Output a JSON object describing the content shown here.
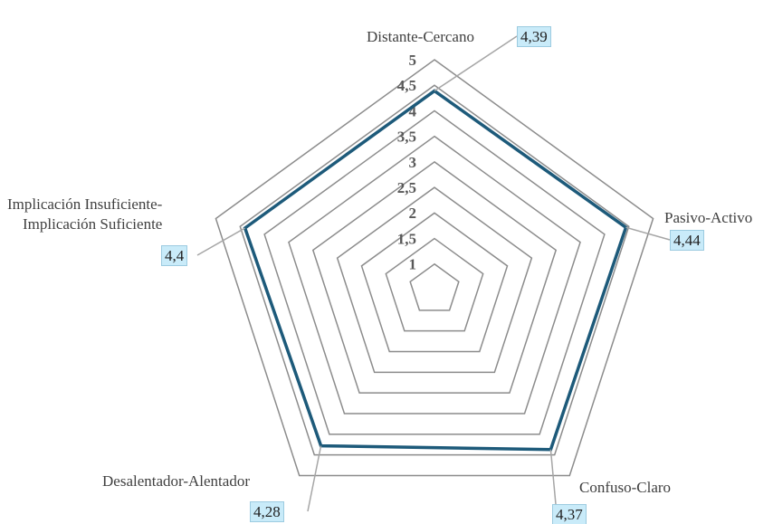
{
  "chart_data": {
    "type": "radar",
    "categories": [
      "Distante-Cercano",
      "Pasivo-Activo",
      "Confuso-Claro",
      "Desalentador-Alentador",
      "Implicación Insuficiente-\nImplicación Suficiente"
    ],
    "series": [
      {
        "color": "#1d5a7a",
        "values": [
          4.39,
          4.44,
          4.37,
          4.28,
          4.4
        ],
        "value_labels": [
          "4,39",
          "4,44",
          "4,37",
          "4,28",
          "4,4"
        ]
      }
    ],
    "ylim": [
      0.5,
      5
    ],
    "yticks": [
      1,
      {
        "value": 1.5,
        "label": "1,5"
      },
      2,
      {
        "value": 2.5,
        "label": "2,5"
      },
      3,
      {
        "value": 3.5,
        "label": "3,5"
      },
      4,
      {
        "value": 4.5,
        "label": "4,5"
      },
      5
    ],
    "grid": true
  }
}
